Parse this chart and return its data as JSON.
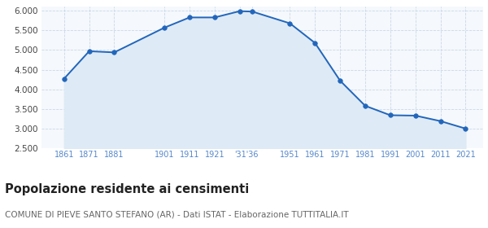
{
  "years": [
    1861,
    1871,
    1881,
    1901,
    1911,
    1921,
    1931,
    1936,
    1951,
    1961,
    1971,
    1981,
    1991,
    2001,
    2011,
    2021
  ],
  "population": [
    4270,
    4970,
    4940,
    5570,
    5830,
    5830,
    5990,
    5980,
    5680,
    5180,
    4220,
    3580,
    3340,
    3330,
    3190,
    3000
  ],
  "line_color": "#2266bb",
  "fill_color": "#deeaf6",
  "marker_color": "#2266bb",
  "bg_color": "#f5f8fc",
  "grid_color": "#c8d8e8",
  "ylim": [
    2500,
    6100
  ],
  "yticks": [
    2500,
    3000,
    3500,
    4000,
    4500,
    5000,
    5500,
    6000
  ],
  "x_tick_positions": [
    1861,
    1871,
    1881,
    1901,
    1911,
    1921,
    1933.5,
    1951,
    1961,
    1971,
    1981,
    1991,
    2001,
    2011,
    2021
  ],
  "x_tick_labels": [
    "1861",
    "1871",
    "1881",
    "1901",
    "1911",
    "1921",
    "'31'36",
    "1951",
    "1961",
    "1971",
    "1981",
    "1991",
    "2001",
    "2011",
    "2021"
  ],
  "x_grid_positions": [
    1861,
    1871,
    1881,
    1901,
    1911,
    1921,
    1931,
    1936,
    1951,
    1961,
    1971,
    1981,
    1991,
    2001,
    2011,
    2021
  ],
  "xlim_left": 1852,
  "xlim_right": 2028,
  "title": "Popolazione residente ai censimenti",
  "subtitle": "COMUNE DI PIEVE SANTO STEFANO (AR) - Dati ISTAT - Elaborazione TUTTITALIA.IT",
  "title_fontsize": 10.5,
  "subtitle_fontsize": 7.5
}
